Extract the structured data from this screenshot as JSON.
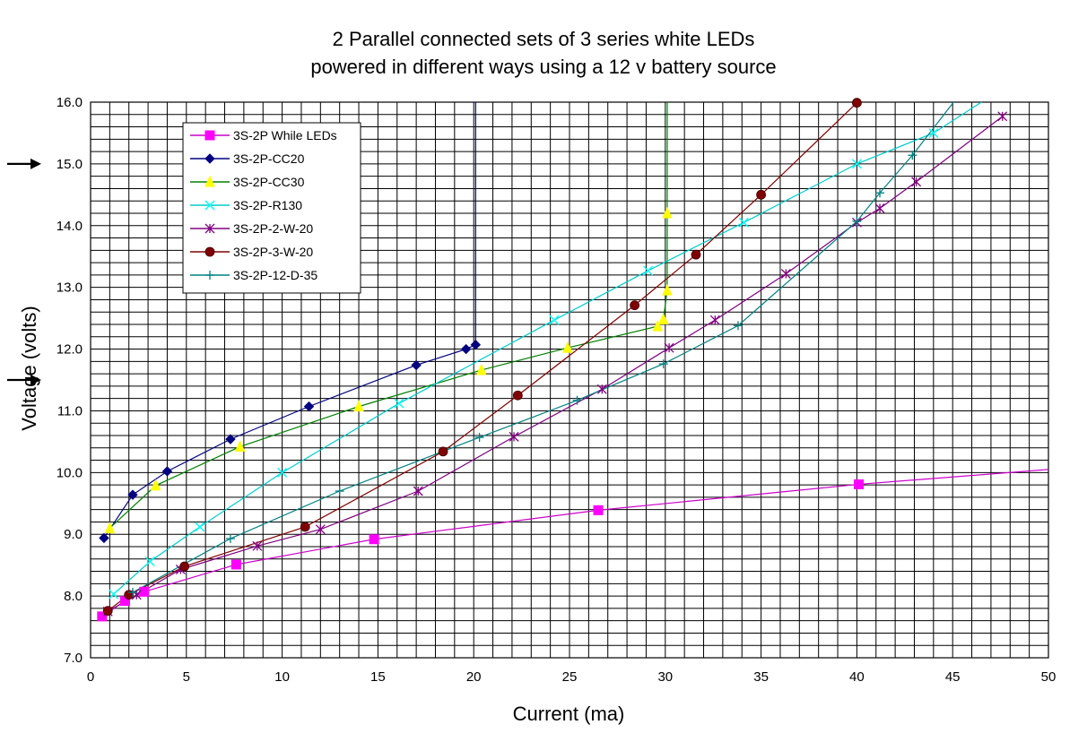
{
  "chart_data": {
    "type": "line",
    "title": "2 Parallel connected sets of 3 series white LEDs",
    "subtitle": "powered in different ways using a 12 v battery source",
    "xlabel": "Current (ma)",
    "ylabel": "Voltage (volts)",
    "xlim": [
      0,
      50
    ],
    "ylim": [
      7.0,
      16.0
    ],
    "x_ticks": [
      "0",
      "5",
      "10",
      "15",
      "20",
      "25",
      "30",
      "35",
      "40",
      "45",
      "50"
    ],
    "y_ticks": [
      "7.0",
      "8.0",
      "9.0",
      "10.0",
      "11.0",
      "12.0",
      "13.0",
      "14.0",
      "15.0",
      "16.0"
    ],
    "grid": true,
    "legend_position": "top-left",
    "arrow_markers_y": [
      15.0,
      11.5
    ],
    "series": [
      {
        "name": "3S-2P While LEDs",
        "color": "#ff00ff",
        "line": "#cc00cc",
        "marker": "square",
        "x": [
          0.6,
          1.8,
          2.8,
          7.6,
          14.8,
          26.5,
          40.1,
          50.0
        ],
        "y": [
          7.67,
          7.92,
          8.07,
          8.51,
          8.92,
          9.39,
          9.81,
          10.05
        ],
        "markers": [
          true,
          true,
          true,
          true,
          true,
          true,
          true,
          false
        ]
      },
      {
        "name": "3S-2P-CC20",
        "color": "#000080",
        "line": "#000080",
        "marker": "diamond",
        "x": [
          0.7,
          2.2,
          4.0,
          7.3,
          11.4,
          17.0,
          19.6,
          20.1,
          20.1
        ],
        "y": [
          8.94,
          9.64,
          10.02,
          10.54,
          11.07,
          11.74,
          12.0,
          12.07,
          16.0
        ],
        "markers": [
          true,
          true,
          true,
          true,
          true,
          true,
          true,
          true,
          false
        ]
      },
      {
        "name": "3S-2P-CC30",
        "color": "#ffff00",
        "line": "#008000",
        "marker": "triangle",
        "x": [
          1.0,
          3.4,
          7.8,
          14.0,
          20.4,
          24.9,
          29.6,
          29.9,
          30.1,
          30.1,
          30.1
        ],
        "y": [
          9.1,
          9.79,
          10.42,
          11.07,
          11.66,
          12.02,
          12.37,
          12.48,
          12.95,
          14.2,
          16.0
        ],
        "markers": [
          true,
          true,
          true,
          true,
          true,
          true,
          true,
          true,
          true,
          true,
          false
        ]
      },
      {
        "name": "3S-2P-R130",
        "color": "#00ffff",
        "line": "#00cccc",
        "marker": "x",
        "x": [
          1.2,
          3.1,
          5.7,
          10.0,
          16.1,
          24.2,
          29.1,
          34.1,
          40.0,
          44.0,
          47.0
        ],
        "y": [
          8.03,
          8.56,
          9.12,
          10.0,
          11.12,
          12.47,
          13.27,
          14.05,
          15.0,
          15.5,
          16.1
        ],
        "markers": [
          true,
          true,
          true,
          true,
          true,
          true,
          true,
          true,
          true,
          true,
          false
        ]
      },
      {
        "name": "3S-2P-2-W-20",
        "color": "#800080",
        "line": "#800080",
        "marker": "star",
        "x": [
          0.9,
          2.4,
          4.7,
          8.7,
          12.0,
          17.1,
          22.1,
          26.7,
          30.2,
          32.6,
          36.3,
          40.0,
          41.2,
          43.1,
          47.6
        ],
        "y": [
          7.75,
          8.02,
          8.43,
          8.81,
          9.08,
          9.7,
          10.58,
          11.35,
          12.02,
          12.47,
          13.22,
          14.05,
          14.28,
          14.71,
          15.77
        ],
        "markers": [
          true,
          true,
          true,
          true,
          true,
          true,
          true,
          true,
          true,
          true,
          true,
          true,
          true,
          true,
          true
        ]
      },
      {
        "name": "3S-2P-3-W-20",
        "color": "#800000",
        "line": "#800000",
        "marker": "circle",
        "x": [
          0.9,
          2.0,
          4.9,
          11.2,
          18.4,
          22.3,
          28.4,
          31.6,
          35.0,
          40.0
        ],
        "y": [
          7.76,
          8.02,
          8.48,
          9.12,
          10.34,
          11.25,
          12.71,
          13.53,
          14.5,
          15.99
        ],
        "markers": [
          true,
          true,
          true,
          true,
          true,
          true,
          true,
          true,
          true,
          true
        ]
      },
      {
        "name": "3S-2P-12-D-35",
        "color": "#008080",
        "line": "#008080",
        "marker": "plus",
        "x": [
          2.2,
          7.3,
          13.0,
          20.3,
          25.4,
          29.9,
          33.8,
          40.0,
          41.2,
          42.9,
          45.3
        ],
        "y": [
          8.06,
          8.93,
          9.7,
          10.57,
          11.17,
          11.76,
          12.38,
          14.07,
          14.53,
          15.14,
          16.1
        ],
        "markers": [
          true,
          true,
          true,
          true,
          true,
          true,
          true,
          true,
          true,
          true,
          false
        ]
      }
    ]
  }
}
